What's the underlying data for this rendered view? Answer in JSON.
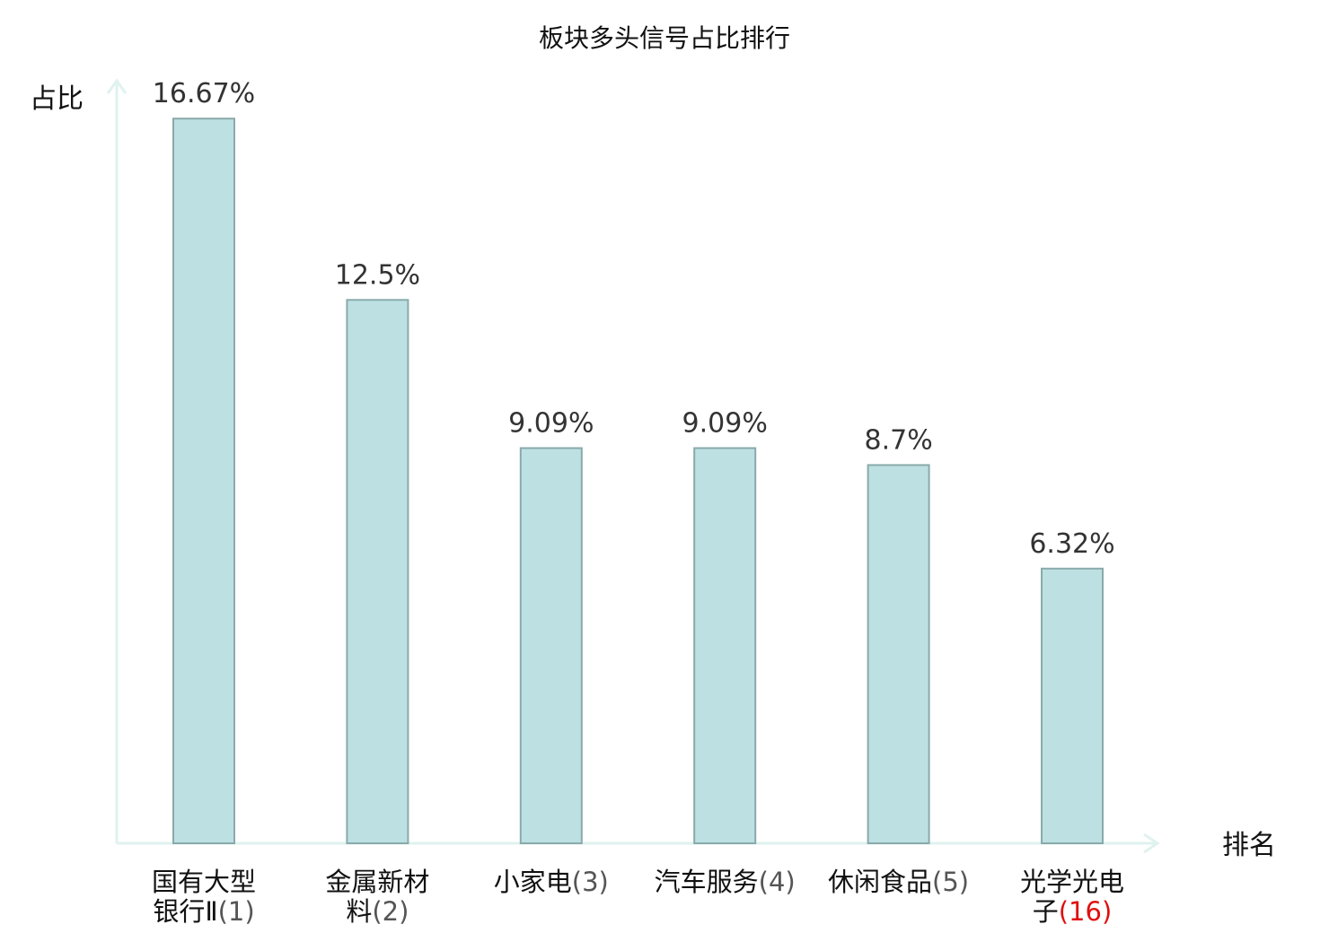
{
  "chart_data": {
    "type": "bar",
    "title": "板块多头信号占比排行",
    "ylabel": "占比",
    "xlabel": "排名",
    "ylim": [
      0,
      17.5
    ],
    "categories": [
      {
        "lines": [
          "国有大型",
          "银行Ⅱ"
        ],
        "rank": "(1)",
        "highlight": false
      },
      {
        "lines": [
          "金属新材",
          "料"
        ],
        "rank": "(2)",
        "highlight": false
      },
      {
        "lines": [
          "小家电"
        ],
        "rank": "(3)",
        "highlight": false
      },
      {
        "lines": [
          "汽车服务"
        ],
        "rank": "(4)",
        "highlight": false
      },
      {
        "lines": [
          "休闲食品"
        ],
        "rank": "(5)",
        "highlight": false
      },
      {
        "lines": [
          "光学光电",
          "子"
        ],
        "rank": "(16)",
        "highlight": true
      }
    ],
    "values": [
      16.67,
      12.5,
      9.09,
      9.09,
      8.7,
      6.32
    ],
    "value_labels": [
      "16.67%",
      "12.5%",
      "9.09%",
      "9.09%",
      "8.7%",
      "6.32%"
    ],
    "colors": {
      "bar_fill": "#bde0e3",
      "bar_stroke": "#8aaaaa",
      "axis": "#dff2ef",
      "highlight_text": "#e01010",
      "text": "#111111"
    }
  }
}
